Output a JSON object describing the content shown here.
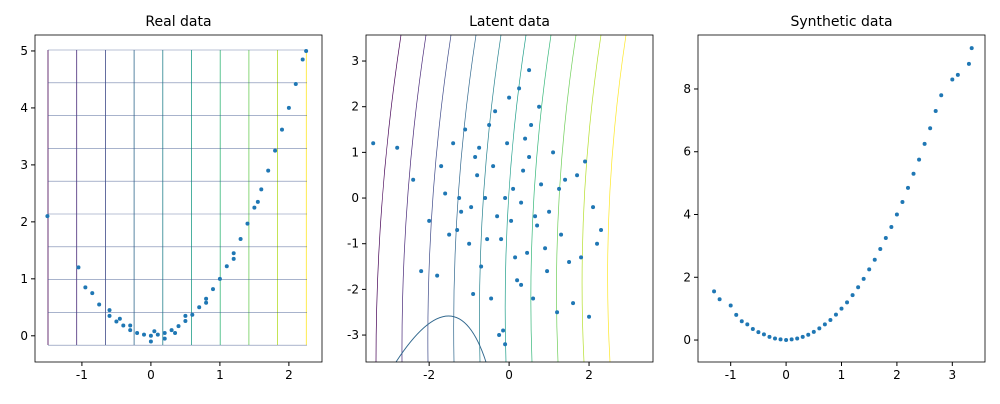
{
  "chart_data": [
    {
      "type": "scatter",
      "title": "Real data",
      "color": "#1f77b4",
      "x": [
        -1.5,
        -1.05,
        -0.95,
        -0.85,
        -0.75,
        -0.6,
        -0.5,
        -0.4,
        -0.3,
        -0.2,
        -0.1,
        0,
        0.1,
        0.2,
        0.3,
        0.4,
        0.5,
        0.6,
        0.7,
        0.8,
        0.9,
        1.0,
        1.1,
        1.2,
        1.3,
        1.4,
        1.5,
        1.6,
        1.7,
        1.8,
        1.9,
        2.0,
        2.1,
        2.2,
        2.25,
        -0.6,
        -0.3,
        0,
        0.2,
        0.5,
        0.8,
        1.2,
        -0.45,
        0.05,
        0.35,
        1.55
      ],
      "values": [
        2.1,
        1.2,
        0.85,
        0.75,
        0.55,
        0.35,
        0.25,
        0.18,
        0.1,
        0.05,
        0.02,
        0.0,
        0.02,
        0.05,
        0.1,
        0.17,
        0.26,
        0.37,
        0.5,
        0.65,
        0.82,
        1.0,
        1.22,
        1.45,
        1.7,
        1.97,
        2.25,
        2.57,
        2.9,
        3.25,
        3.62,
        4.0,
        4.42,
        4.85,
        5.0,
        0.45,
        0.18,
        -0.1,
        -0.05,
        0.35,
        0.58,
        1.35,
        0.3,
        0.08,
        0.05,
        2.35
      ],
      "xlim": [
        -1.68,
        2.48
      ],
      "ylim": [
        -0.46,
        5.28
      ],
      "xticks": [
        -1,
        0,
        1,
        2
      ],
      "yticks": [
        0,
        1,
        2,
        3,
        4,
        5
      ]
    },
    {
      "type": "scatter",
      "title": "Latent data",
      "color": "#1f77b4",
      "x": [
        0.1,
        -0.3,
        0.5,
        -0.8,
        0.9,
        -1.2,
        1.4,
        -0.5,
        0.2,
        0.7,
        -0.1,
        -1.6,
        1.8,
        -2.0,
        2.1,
        0.0,
        -0.7,
        0.4,
        1.1,
        -1.0,
        0.6,
        -0.2,
        -0.4,
        0.3,
        1.6,
        -1.4,
        0.8,
        -0.9,
        1.3,
        -0.6,
        0.15,
        -0.35,
        2.2,
        -2.4,
        -2.8,
        1.9,
        -1.8,
        0.95,
        -0.15,
        0.55,
        -1.1,
        1.2,
        0.25,
        -0.55,
        0.05,
        -0.25,
        1.7,
        -1.5,
        0.45,
        -0.75,
        2.0,
        -2.2,
        1.0,
        -1.3,
        0.35,
        -0.05,
        0.65,
        -0.85,
        1.5,
        -1.7,
        0.75,
        -0.45,
        0.3,
        -0.95,
        1.25,
        2.3,
        -3.4,
        -0.1,
        0.5,
        -1.25
      ],
      "values": [
        0.2,
        -0.4,
        0.9,
        0.5,
        -1.1,
        -0.3,
        0.4,
        1.6,
        -1.8,
        -0.6,
        0.0,
        0.1,
        -1.3,
        -0.5,
        -0.2,
        2.2,
        -1.5,
        1.3,
        1.0,
        -1.0,
        -2.2,
        -0.9,
        0.7,
        -0.1,
        -2.3,
        1.2,
        0.3,
        -2.1,
        -0.8,
        0.0,
        -1.3,
        1.9,
        -1.0,
        0.4,
        1.1,
        0.8,
        -1.7,
        -1.6,
        -2.9,
        1.6,
        1.5,
        -2.5,
        2.4,
        -0.9,
        -0.5,
        -3.0,
        0.5,
        -0.8,
        -1.2,
        1.1,
        -2.6,
        -1.6,
        -0.3,
        -0.7,
        0.6,
        1.2,
        -0.4,
        0.9,
        -1.4,
        0.7,
        2.0,
        -2.2,
        -1.9,
        -0.2,
        0.2,
        -0.7,
        1.2,
        -3.2,
        2.8,
        0.0
      ],
      "xlim": [
        -3.58,
        3.6
      ],
      "ylim": [
        -3.59,
        3.57
      ],
      "xticks": [
        -2,
        0,
        2
      ],
      "yticks": [
        -3,
        -2,
        -1,
        0,
        1,
        2,
        3
      ]
    },
    {
      "type": "scatter",
      "title": "Synthetic data",
      "color": "#1f77b4",
      "x": [
        -1.3,
        -1.2,
        -1.0,
        -0.9,
        -0.8,
        -0.7,
        -0.6,
        -0.5,
        -0.4,
        -0.3,
        -0.2,
        -0.1,
        0,
        0.1,
        0.2,
        0.3,
        0.4,
        0.5,
        0.6,
        0.7,
        0.8,
        0.9,
        1.0,
        1.1,
        1.2,
        1.3,
        1.4,
        1.5,
        1.6,
        1.7,
        1.8,
        1.9,
        2.0,
        2.1,
        2.2,
        2.3,
        2.4,
        2.5,
        2.6,
        2.7,
        2.8,
        3.0,
        3.1,
        3.3,
        3.35
      ],
      "values": [
        1.55,
        1.3,
        1.1,
        0.8,
        0.6,
        0.5,
        0.35,
        0.25,
        0.18,
        0.1,
        0.05,
        0.02,
        0.0,
        0.02,
        0.05,
        0.1,
        0.17,
        0.26,
        0.37,
        0.5,
        0.64,
        0.81,
        1.0,
        1.2,
        1.43,
        1.68,
        1.95,
        2.25,
        2.56,
        2.9,
        3.25,
        3.6,
        4.0,
        4.4,
        4.85,
        5.3,
        5.75,
        6.25,
        6.75,
        7.3,
        7.8,
        8.3,
        8.45,
        8.8,
        9.3
      ],
      "xlim": [
        -1.59,
        3.59
      ],
      "ylim": [
        -0.7,
        9.72
      ],
      "xticks": [
        -1,
        0,
        1,
        2,
        3
      ],
      "yticks": [
        0,
        2,
        4,
        6,
        8
      ]
    }
  ]
}
